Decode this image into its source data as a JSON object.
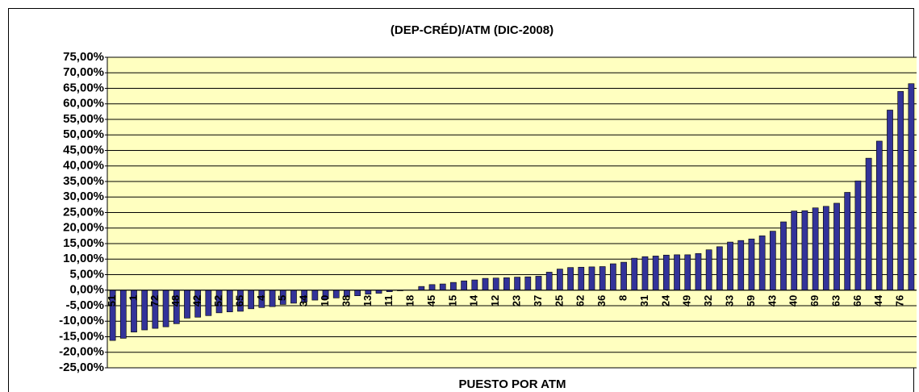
{
  "chart_data": {
    "type": "bar",
    "title": "(DEP-CRÉD)/ATM (DIC-2008)",
    "x_label": "PUESTO POR ATM",
    "categories": [
      "51",
      null,
      "1",
      null,
      "72",
      null,
      "48",
      null,
      "42",
      null,
      "52",
      null,
      "65",
      null,
      "4",
      null,
      "5",
      null,
      "34",
      null,
      "10",
      null,
      "38",
      null,
      "13",
      null,
      "11",
      null,
      "18",
      null,
      "45",
      null,
      "15",
      null,
      "14",
      null,
      "12",
      null,
      "23",
      null,
      "37",
      null,
      "25",
      null,
      "62",
      null,
      "36",
      null,
      "8",
      null,
      "31",
      null,
      "24",
      null,
      "49",
      null,
      "32",
      null,
      "33",
      null,
      "59",
      null,
      "43",
      null,
      "40",
      null,
      "69",
      null,
      "63",
      null,
      "66",
      null,
      "44",
      null,
      "76",
      null
    ],
    "values": [
      -16.2,
      -15.5,
      -13.5,
      -12.8,
      -12.3,
      -11.8,
      -10.8,
      -9,
      -8.7,
      -8.2,
      -7.3,
      -7,
      -6.8,
      -6,
      -5.6,
      -5.3,
      -4.6,
      -4.2,
      -3.8,
      -3.2,
      -2.8,
      -2.5,
      -2.2,
      -1.8,
      -1.3,
      -1,
      -0.5,
      -0.2,
      0,
      1.2,
      1.8,
      2,
      2.5,
      3,
      3.3,
      3.8,
      3.9,
      4,
      4.2,
      4.3,
      4.5,
      5.8,
      6.8,
      7.3,
      7.4,
      7.5,
      7.6,
      8.5,
      9,
      10.3,
      10.8,
      11,
      11.3,
      11.4,
      11.4,
      11.8,
      13,
      14,
      15.5,
      16,
      16.5,
      17.5,
      19,
      22,
      25.5,
      25.6,
      26.5,
      27,
      28,
      31.5,
      35.2,
      42.5,
      48,
      58,
      64,
      66.5
    ],
    "color": "#333399",
    "ylim": [
      -25,
      75
    ],
    "yticks": [
      {
        "value": -25,
        "label": "-25,00%"
      },
      {
        "value": -20,
        "label": "-20,00%"
      },
      {
        "value": -15,
        "label": "-15,00%"
      },
      {
        "value": -10,
        "label": "-10,00%"
      },
      {
        "value": -5,
        "label": "-5,00%"
      },
      {
        "value": 0,
        "label": "0,00%"
      },
      {
        "value": 5,
        "label": "5,00%"
      },
      {
        "value": 10,
        "label": "10,00%"
      },
      {
        "value": 15,
        "label": "15,00%"
      },
      {
        "value": 20,
        "label": "20,00%"
      },
      {
        "value": 25,
        "label": "25,00%"
      },
      {
        "value": 30,
        "label": "30,00%"
      },
      {
        "value": 35,
        "label": "35,00%"
      },
      {
        "value": 40,
        "label": "40,00%"
      },
      {
        "value": 45,
        "label": "45,00%"
      },
      {
        "value": 50,
        "label": "50,00%"
      },
      {
        "value": 55,
        "label": "55,00%"
      },
      {
        "value": 60,
        "label": "60,00%"
      },
      {
        "value": 65,
        "label": "65,00%"
      },
      {
        "value": 70,
        "label": "70,00%"
      },
      {
        "value": 75,
        "label": "75,00%"
      }
    ],
    "grid": true
  }
}
